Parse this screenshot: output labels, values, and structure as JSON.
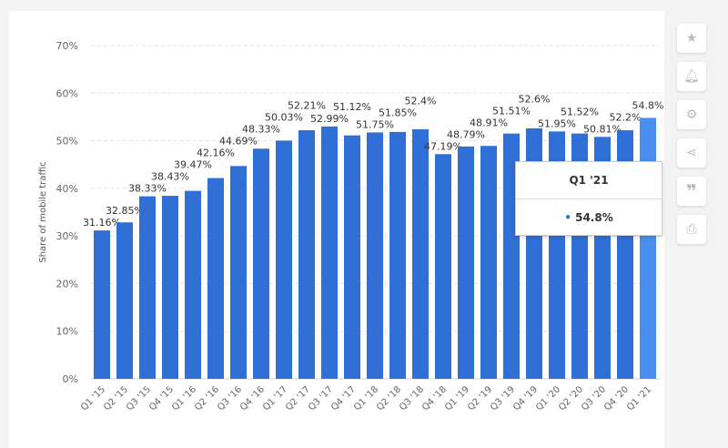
{
  "chart_data": {
    "type": "bar",
    "ylabel": "Share of mobile traffic",
    "ylim": [
      0,
      70
    ],
    "yticks": [
      "0%",
      "10%",
      "20%",
      "30%",
      "40%",
      "50%",
      "60%",
      "70%"
    ],
    "grid": true,
    "categories": [
      "Q1 '15",
      "Q2 '15",
      "Q3 '15",
      "Q4 '15",
      "Q1 '16",
      "Q2 '16",
      "Q3 '16",
      "Q4 '16",
      "Q1 '17",
      "Q2 '17",
      "Q3 '17",
      "Q4 '17",
      "Q1 '18",
      "Q2 '18",
      "Q3 '18",
      "Q4 '18",
      "Q1 '19",
      "Q2 '19",
      "Q3 '19",
      "Q4 '19",
      "Q1 '20",
      "Q2 '20",
      "Q3 '20",
      "Q4 '20",
      "Q1 '21"
    ],
    "values": [
      31.16,
      32.85,
      38.33,
      38.43,
      39.47,
      42.16,
      44.69,
      48.33,
      50.03,
      52.21,
      52.99,
      51.12,
      51.75,
      51.85,
      52.4,
      47.19,
      48.79,
      48.91,
      51.51,
      52.6,
      51.95,
      51.52,
      50.81,
      52.2,
      54.8
    ],
    "bar_color": "#2f6fd6",
    "highlight_color": "#4a8ff0",
    "highlight_index": 24
  },
  "tooltip": {
    "title": "Q1 '21",
    "value": "54.8%"
  },
  "sidebar": [
    "star-icon",
    "bell-icon",
    "gear-icon",
    "share-icon",
    "quote-icon",
    "print-icon"
  ]
}
